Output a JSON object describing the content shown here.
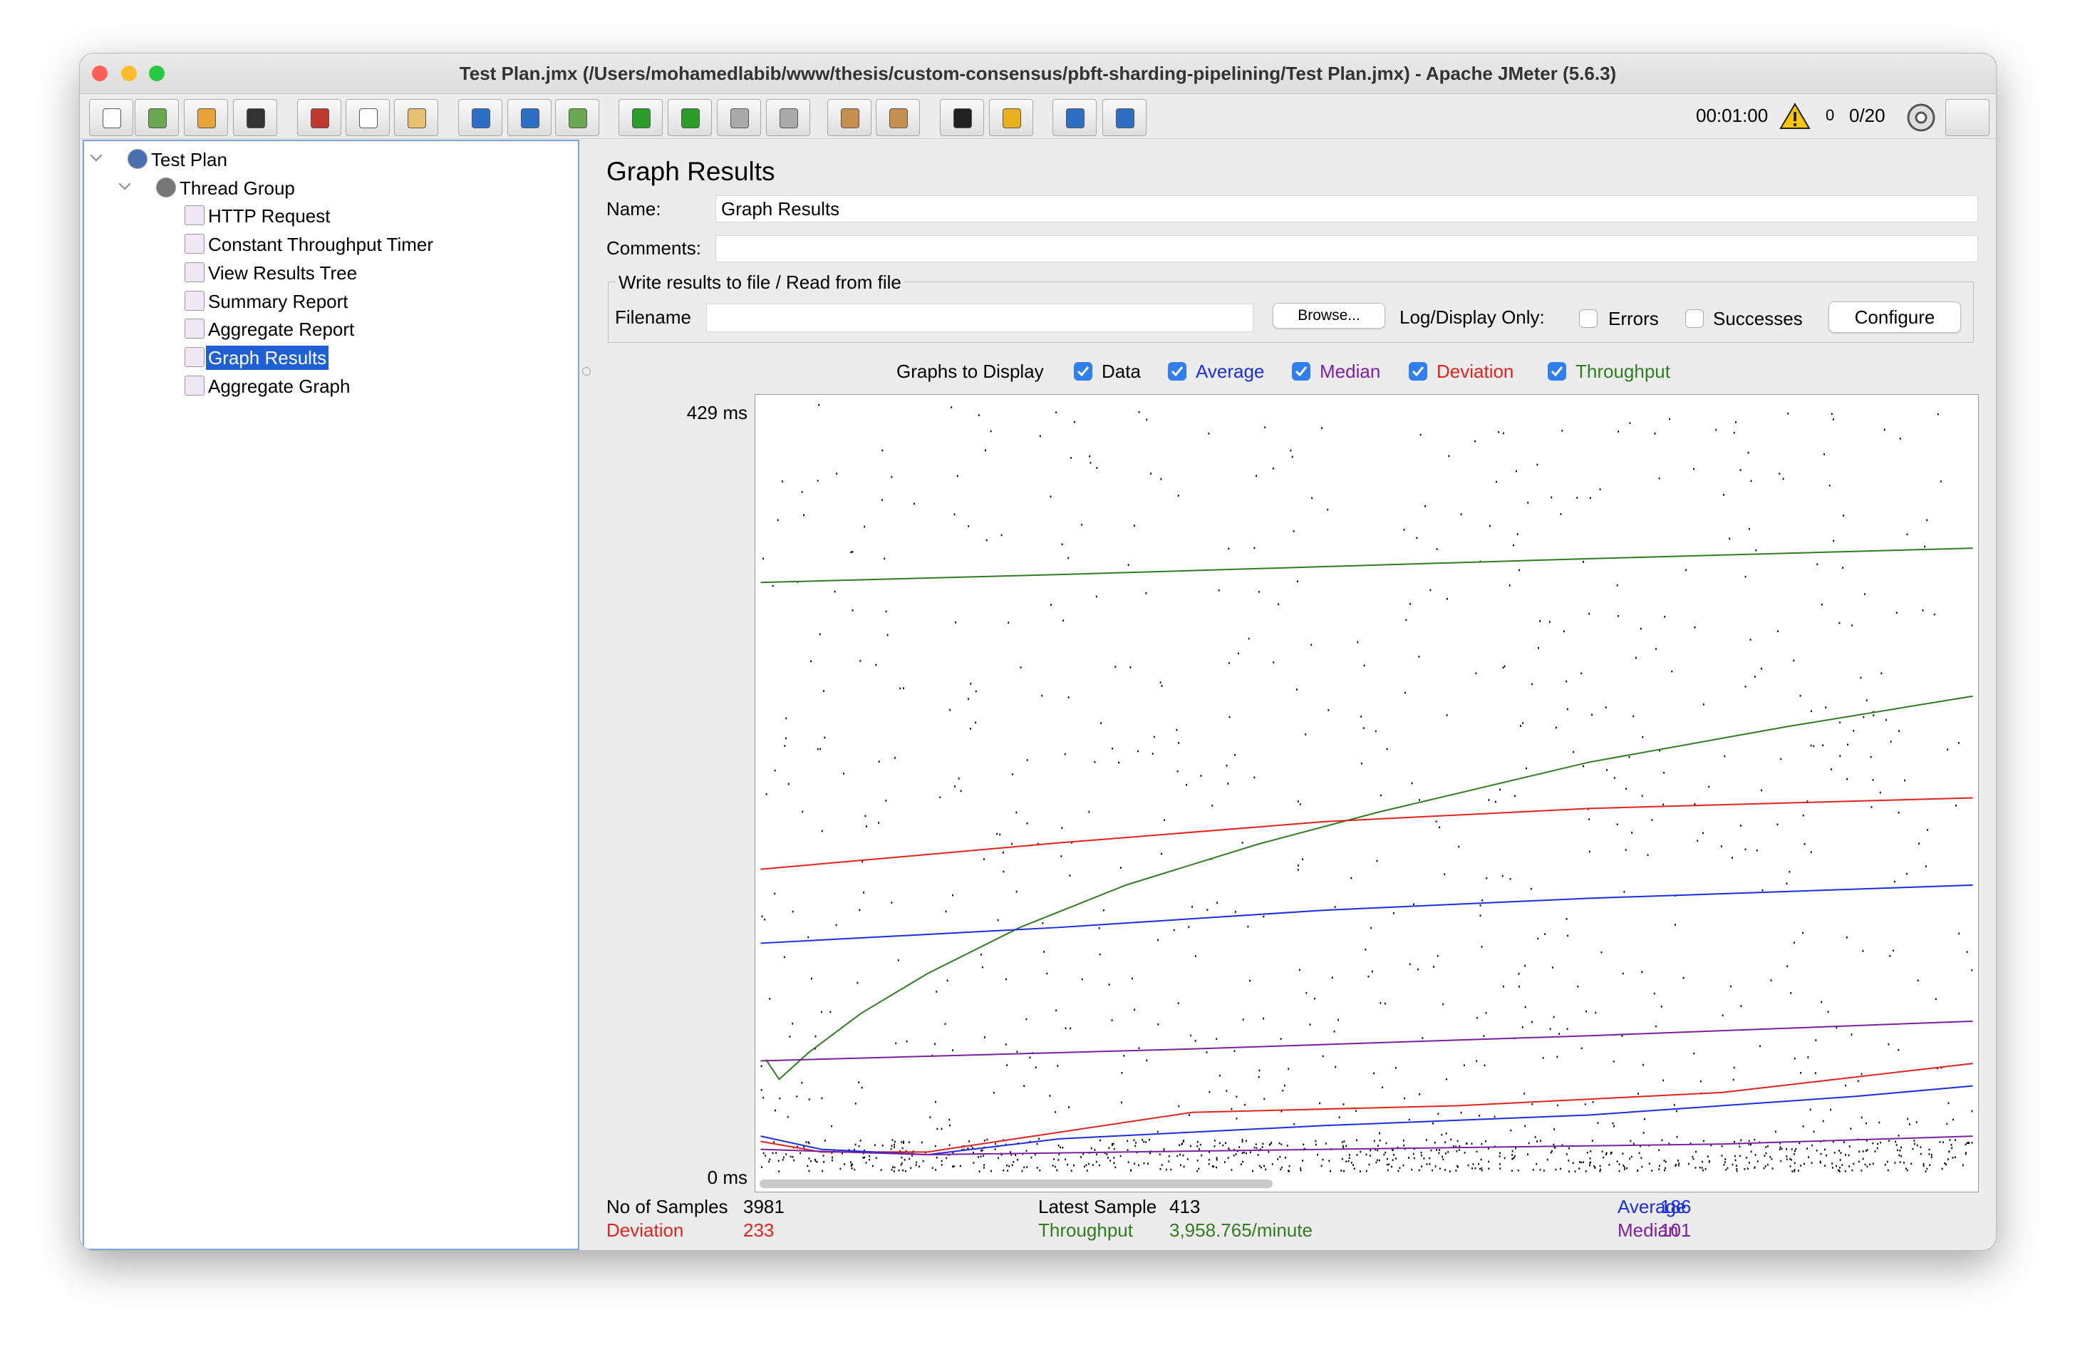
{
  "window": {
    "title": "Test Plan.jmx (/Users/mohamedlabib/www/thesis/custom-consensus/pbft-sharding-pipelining/Test Plan.jmx) - Apache JMeter (5.6.3)"
  },
  "toolbar": {
    "elapsed": "00:01:00",
    "warnings": "0",
    "threads": "0/20"
  },
  "tree": {
    "nodes": [
      {
        "label": "Test Plan",
        "children": [
          {
            "label": "Thread Group",
            "children": [
              {
                "label": "HTTP Request"
              },
              {
                "label": "Constant Throughput Timer"
              },
              {
                "label": "View Results Tree"
              },
              {
                "label": "Summary Report"
              },
              {
                "label": "Aggregate Report"
              },
              {
                "label": "Graph Results"
              },
              {
                "label": "Aggregate Graph"
              }
            ]
          }
        ]
      }
    ]
  },
  "panel": {
    "title": "Graph Results",
    "name_label": "Name:",
    "name_value": "Graph Results",
    "comments_label": "Comments:",
    "file_group": {
      "legend": "Write results to file / Read from file",
      "filename_label": "Filename",
      "browse": "Browse...",
      "log_display_only": "Log/Display Only:",
      "errors": "Errors",
      "successes": "Successes",
      "configure": "Configure"
    },
    "graphs_to_display": {
      "label": "Graphs to Display",
      "options": [
        {
          "label": "Data",
          "color": "#000000",
          "checked": true
        },
        {
          "label": "Average",
          "color": "#1a2ee0",
          "checked": true
        },
        {
          "label": "Median",
          "color": "#7d1f9e",
          "checked": true
        },
        {
          "label": "Deviation",
          "color": "#e0231b",
          "checked": true
        },
        {
          "label": "Throughput",
          "color": "#2f7d1e",
          "checked": true
        }
      ]
    },
    "graph": {
      "y_max_label": "429 ms",
      "y_min_label": "0 ms"
    },
    "stats": [
      {
        "label": "No of Samples",
        "value": "3981",
        "color": "#000000"
      },
      {
        "label": "Deviation",
        "value": "233",
        "color": "#e0231b"
      },
      {
        "label": "Latest Sample",
        "value": "413",
        "color": "#000000"
      },
      {
        "label": "Throughput",
        "value": "3,958.765/minute",
        "color": "#2f7d1e"
      },
      {
        "label": "Average",
        "value": "186",
        "color": "#1a2ee0"
      },
      {
        "label": "Median",
        "value": "101",
        "color": "#7d1f9e"
      }
    ]
  }
}
